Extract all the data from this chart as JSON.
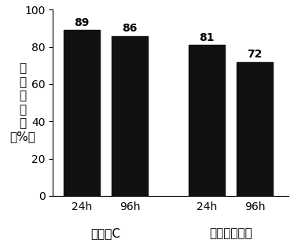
{
  "bars": [
    {
      "label": "24h",
      "group": "保存液C",
      "value": 89,
      "x": 1
    },
    {
      "label": "96h",
      "group": "保存液C",
      "value": 86,
      "x": 2
    },
    {
      "label": "24h",
      "group": "商品化保存液",
      "value": 81,
      "x": 3.6
    },
    {
      "label": "96h",
      "group": "商品化保存液",
      "value": 72,
      "x": 4.6
    }
  ],
  "bar_color": "#111111",
  "bar_width": 0.75,
  "ylim": [
    0,
    100
  ],
  "yticks": [
    0,
    20,
    40,
    60,
    80,
    100
  ],
  "ylabel": "细\n胞\n存\n活\n率\n（%）",
  "ylabel_fontsize": 11,
  "value_fontsize": 10,
  "tick_fontsize": 10,
  "group_labels": [
    {
      "text": "保存液C",
      "x": 1.5
    },
    {
      "text": "商品化保存液",
      "x": 4.1
    }
  ],
  "group_label_fontsize": 11,
  "x_tick_labels": [
    {
      "text": "24h",
      "x": 1
    },
    {
      "text": "96h",
      "x": 2
    },
    {
      "text": "24h",
      "x": 3.6
    },
    {
      "text": "96h",
      "x": 4.6
    }
  ],
  "x_tick_fontsize": 10,
  "xlim": [
    0.4,
    5.3
  ],
  "background_color": "#ffffff"
}
